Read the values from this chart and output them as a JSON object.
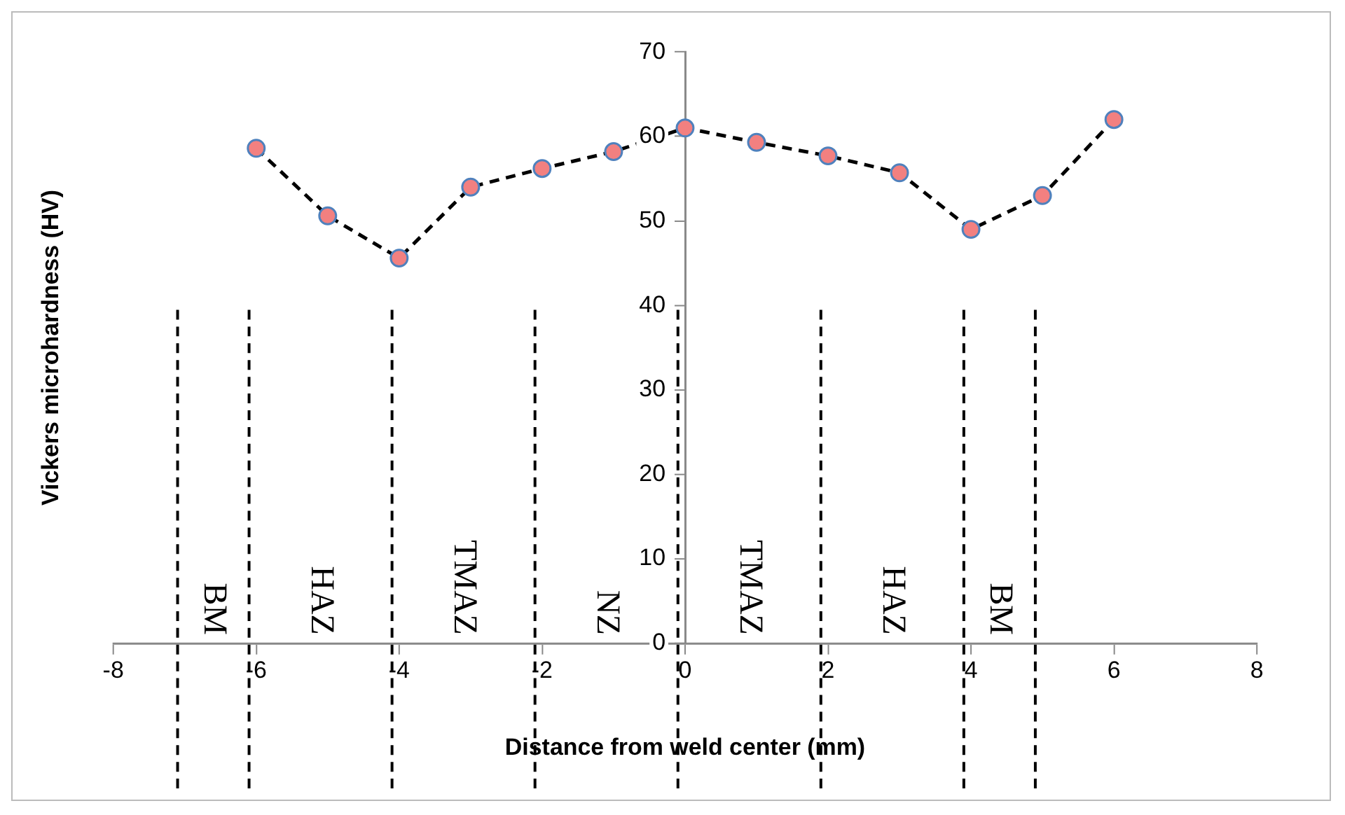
{
  "chart_data": {
    "type": "line",
    "xlabel": "Distance from weld center (mm)",
    "ylabel": "Vickers microhardness (HV)",
    "x": [
      -6,
      -5,
      -4,
      -3,
      -2,
      -1,
      0,
      1,
      2,
      3,
      4,
      5,
      6
    ],
    "series": [
      {
        "color": "#000000",
        "values": [
          58.6,
          50.6,
          45.6,
          54.0,
          56.2,
          58.2,
          61.0,
          59.3,
          57.7,
          55.7,
          49.0,
          53.0,
          62.0
        ]
      }
    ],
    "marker": "circle",
    "line_style": "dashed",
    "xlim": [
      -8,
      8
    ],
    "xticks": [
      -8,
      -6,
      -4,
      -2,
      0,
      2,
      4,
      6,
      8
    ],
    "ylim": [
      0,
      70
    ],
    "yticks": [
      0,
      10,
      20,
      30,
      40,
      50,
      60,
      70
    ],
    "ref_lines": [
      {
        "axis": "x",
        "value": -7.1,
        "line_style": "dashed",
        "color": "#000000"
      },
      {
        "axis": "x",
        "value": -6.1,
        "line_style": "dashed",
        "color": "#000000"
      },
      {
        "axis": "x",
        "value": -4.1,
        "line_style": "dashed",
        "color": "#000000"
      },
      {
        "axis": "x",
        "value": -2.1,
        "line_style": "dashed",
        "color": "#000000"
      },
      {
        "axis": "x",
        "value": -0.1,
        "line_style": "dashed",
        "color": "#000000"
      },
      {
        "axis": "x",
        "value": 1.9,
        "line_style": "dashed",
        "color": "#000000"
      },
      {
        "axis": "x",
        "value": 3.9,
        "line_style": "dashed",
        "color": "#000000"
      },
      {
        "axis": "x",
        "value": 4.9,
        "line_style": "dashed",
        "color": "#000000"
      }
    ],
    "annotations": [
      "BM",
      "HAZ",
      "TMAZ",
      "NZ",
      "TMAZ",
      "HAZ",
      "BM"
    ]
  }
}
